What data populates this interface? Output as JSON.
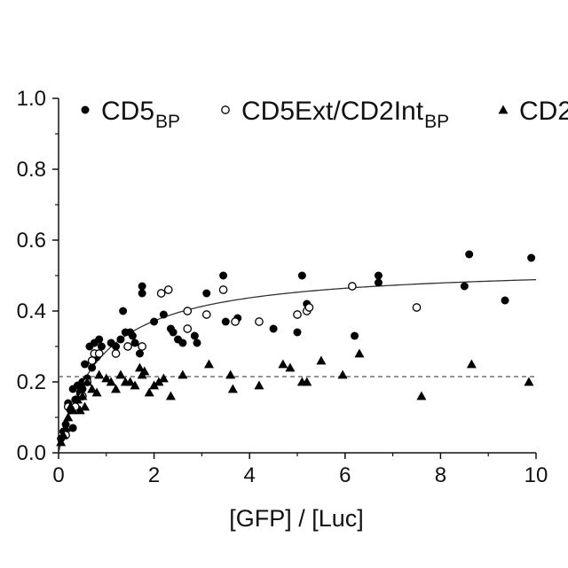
{
  "chart_data": {
    "type": "scatter",
    "xlabel": "[GFP] / [Luc]",
    "ylabel": "",
    "xlim": [
      0,
      10
    ],
    "ylim": [
      0,
      1.0
    ],
    "x_ticks": [
      "0",
      "2",
      "4",
      "6",
      "8",
      "10"
    ],
    "y_ticks": [
      "0.0",
      "0.2",
      "0.4",
      "0.6",
      "0.8",
      "1.0"
    ],
    "legend_position": "top",
    "series": [
      {
        "name": "CD5",
        "name_subscript": "BP",
        "marker": "filled-circle",
        "color": "#000000",
        "points": [
          [
            0.05,
            0.04
          ],
          [
            0.1,
            0.06
          ],
          [
            0.15,
            0.08
          ],
          [
            0.2,
            0.14
          ],
          [
            0.25,
            0.12
          ],
          [
            0.3,
            0.18
          ],
          [
            0.3,
            0.07
          ],
          [
            0.35,
            0.15
          ],
          [
            0.4,
            0.19
          ],
          [
            0.45,
            0.17
          ],
          [
            0.5,
            0.2
          ],
          [
            0.5,
            0.18
          ],
          [
            0.55,
            0.25
          ],
          [
            0.6,
            0.21
          ],
          [
            0.65,
            0.3
          ],
          [
            0.7,
            0.24
          ],
          [
            0.75,
            0.31
          ],
          [
            0.8,
            0.27
          ],
          [
            0.85,
            0.32
          ],
          [
            0.9,
            0.3
          ],
          [
            1.1,
            0.31
          ],
          [
            1.2,
            0.3
          ],
          [
            1.3,
            0.32
          ],
          [
            1.35,
            0.4
          ],
          [
            1.4,
            0.34
          ],
          [
            1.5,
            0.34
          ],
          [
            1.55,
            0.33
          ],
          [
            1.6,
            0.31
          ],
          [
            1.7,
            0.28
          ],
          [
            1.75,
            0.47
          ],
          [
            1.75,
            0.45
          ],
          [
            2.0,
            0.37
          ],
          [
            2.2,
            0.39
          ],
          [
            2.35,
            0.35
          ],
          [
            2.4,
            0.34
          ],
          [
            2.5,
            0.32
          ],
          [
            2.6,
            0.31
          ],
          [
            2.85,
            0.33
          ],
          [
            2.9,
            0.31
          ],
          [
            3.1,
            0.45
          ],
          [
            3.45,
            0.5
          ],
          [
            3.5,
            0.37
          ],
          [
            3.75,
            0.38
          ],
          [
            4.5,
            0.35
          ],
          [
            5.0,
            0.34
          ],
          [
            5.1,
            0.5
          ],
          [
            5.2,
            0.42
          ],
          [
            6.2,
            0.33
          ],
          [
            6.7,
            0.5
          ],
          [
            6.7,
            0.48
          ],
          [
            8.5,
            0.47
          ],
          [
            8.6,
            0.56
          ],
          [
            9.35,
            0.43
          ],
          [
            9.9,
            0.55
          ]
        ]
      },
      {
        "name": "CD5Ext/CD2Int",
        "name_subscript": "BP",
        "marker": "open-circle",
        "color": "#000000",
        "points": [
          [
            0.15,
            0.05
          ],
          [
            0.2,
            0.13
          ],
          [
            0.35,
            0.13
          ],
          [
            0.5,
            0.16
          ],
          [
            0.6,
            0.2
          ],
          [
            0.7,
            0.26
          ],
          [
            0.75,
            0.28
          ],
          [
            0.85,
            0.28
          ],
          [
            1.2,
            0.28
          ],
          [
            1.45,
            0.3
          ],
          [
            1.75,
            0.3
          ],
          [
            2.15,
            0.45
          ],
          [
            2.3,
            0.46
          ],
          [
            2.7,
            0.4
          ],
          [
            2.7,
            0.35
          ],
          [
            3.1,
            0.39
          ],
          [
            3.45,
            0.46
          ],
          [
            3.7,
            0.37
          ],
          [
            4.2,
            0.37
          ],
          [
            5.0,
            0.39
          ],
          [
            5.2,
            0.4
          ],
          [
            5.25,
            0.41
          ],
          [
            6.15,
            0.47
          ],
          [
            7.5,
            0.41
          ]
        ]
      },
      {
        "name": "CD2",
        "name_subscript": "",
        "marker": "filled-triangle",
        "color": "#000000",
        "points": [
          [
            0.05,
            0.03
          ],
          [
            0.1,
            0.05
          ],
          [
            0.15,
            0.07
          ],
          [
            0.2,
            0.1
          ],
          [
            0.25,
            0.13
          ],
          [
            0.3,
            0.12
          ],
          [
            0.4,
            0.15
          ],
          [
            0.45,
            0.12
          ],
          [
            0.5,
            0.16
          ],
          [
            0.55,
            0.13
          ],
          [
            0.6,
            0.2
          ],
          [
            0.7,
            0.18
          ],
          [
            0.8,
            0.17
          ],
          [
            0.85,
            0.22
          ],
          [
            1.0,
            0.21
          ],
          [
            1.1,
            0.2
          ],
          [
            1.2,
            0.18
          ],
          [
            1.3,
            0.22
          ],
          [
            1.4,
            0.2
          ],
          [
            1.5,
            0.2
          ],
          [
            1.6,
            0.19
          ],
          [
            1.7,
            0.24
          ],
          [
            1.75,
            0.22
          ],
          [
            1.8,
            0.23
          ],
          [
            1.9,
            0.17
          ],
          [
            2.0,
            0.19
          ],
          [
            2.1,
            0.2
          ],
          [
            2.2,
            0.21
          ],
          [
            2.35,
            0.16
          ],
          [
            2.6,
            0.22
          ],
          [
            3.15,
            0.25
          ],
          [
            3.6,
            0.22
          ],
          [
            3.65,
            0.18
          ],
          [
            4.2,
            0.19
          ],
          [
            4.7,
            0.25
          ],
          [
            4.85,
            0.24
          ],
          [
            5.1,
            0.2
          ],
          [
            5.2,
            0.2
          ],
          [
            5.5,
            0.26
          ],
          [
            5.95,
            0.22
          ],
          [
            6.3,
            0.28
          ],
          [
            7.6,
            0.16
          ],
          [
            8.65,
            0.25
          ],
          [
            9.85,
            0.2
          ]
        ]
      }
    ],
    "fit_curve": {
      "style": "solid",
      "function": "saturation",
      "params": {
        "ymax": 0.53,
        "k": 0.85
      }
    },
    "reference_line": {
      "style": "dashed",
      "y": 0.215
    }
  }
}
